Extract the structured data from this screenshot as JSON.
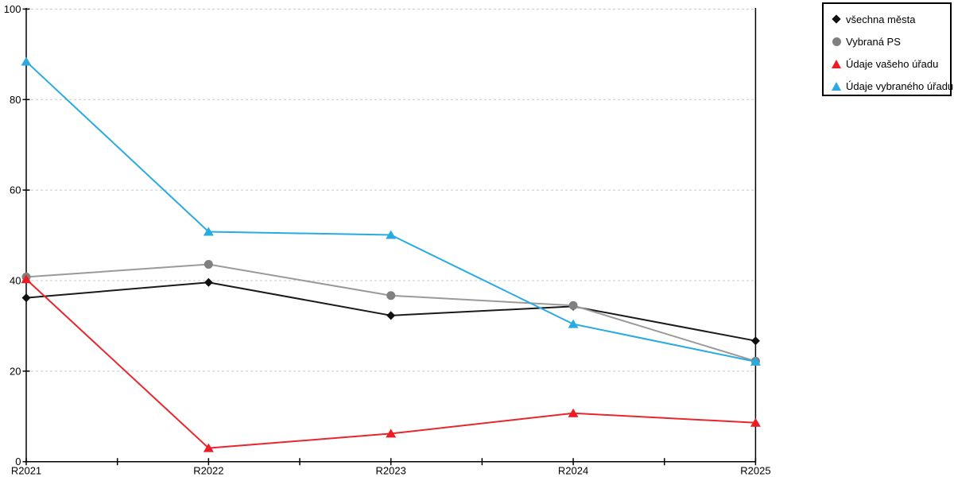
{
  "chart_data": {
    "type": "line",
    "title": "",
    "xlabel": "",
    "ylabel": "",
    "categories": [
      "R2021",
      "R2022",
      "R2023",
      "R2024",
      "R2025"
    ],
    "series": [
      {
        "name": "všechna města",
        "marker": "diamond",
        "line_color": "#1a1a1a",
        "marker_color": "#111111",
        "values": [
          36.2,
          39.6,
          32.3,
          34.3,
          26.7
        ]
      },
      {
        "name": "Vybraná PS",
        "marker": "circle",
        "line_color": "#9a9a9a",
        "marker_color": "#808080",
        "values": [
          40.8,
          43.6,
          36.7,
          34.5,
          22.2
        ]
      },
      {
        "name": "Údaje vašeho úřadu",
        "marker": "triangle",
        "line_color": "#e8262b",
        "marker_color": "#ed1c24",
        "values": [
          40.3,
          3.0,
          6.2,
          10.7,
          8.6
        ]
      },
      {
        "name": "Údaje vybraného úřadu",
        "marker": "triangle",
        "line_color": "#29abe2",
        "marker_color": "#29abe2",
        "values": [
          88.4,
          50.8,
          50.1,
          30.4,
          22.1
        ]
      }
    ],
    "ylim": [
      0,
      100
    ],
    "yticks": [
      0,
      20,
      40,
      60,
      80,
      100
    ],
    "grid": "horizontal-dashed",
    "grid_color": "#c8c8c8",
    "axis_color": "#000000",
    "legend_position": "top-right"
  },
  "legend": {
    "border_color": "#000000",
    "background": "#ffffff"
  }
}
